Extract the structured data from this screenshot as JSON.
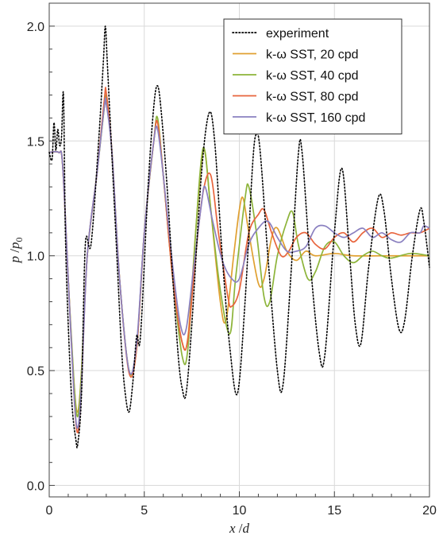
{
  "chart_data": {
    "type": "line",
    "title": "",
    "xlabel": "x /d",
    "ylabel": "p /p0",
    "xlabel_parts": {
      "main": "x",
      "sep": " /",
      "denom": "d"
    },
    "ylabel_parts": {
      "main": "p",
      "sep": " /",
      "denom": "p",
      "sub": "0"
    },
    "xlim": [
      0,
      20
    ],
    "ylim": [
      -0.05,
      2.1
    ],
    "xticks": [
      0,
      5,
      10,
      15,
      20
    ],
    "xtick_labels": [
      "0",
      "5",
      "10",
      "15",
      "20"
    ],
    "yticks": [
      0.0,
      0.5,
      1.0,
      1.5,
      2.0
    ],
    "ytick_labels": [
      "0.0",
      "0.5",
      "1.0",
      "1.5",
      "2.0"
    ],
    "grid": true,
    "legend_position": "top-right",
    "series": [
      {
        "name": "experiment",
        "color": "#000000",
        "dash": "dotted",
        "points": [
          [
            0,
            1.45
          ],
          [
            0.15,
            1.42
          ],
          [
            0.25,
            1.58
          ],
          [
            0.35,
            1.46
          ],
          [
            0.45,
            1.55
          ],
          [
            0.55,
            1.48
          ],
          [
            0.65,
            1.52
          ],
          [
            0.75,
            1.7
          ],
          [
            0.85,
            1.1
          ],
          [
            1.0,
            0.7
          ],
          [
            1.2,
            0.35
          ],
          [
            1.4,
            0.2
          ],
          [
            1.5,
            0.18
          ],
          [
            1.7,
            0.4
          ],
          [
            1.9,
            1.05
          ],
          [
            2.2,
            1.05
          ],
          [
            2.6,
            1.5
          ],
          [
            2.85,
            1.85
          ],
          [
            2.95,
            2.0
          ],
          [
            3.05,
            1.85
          ],
          [
            3.2,
            1.6
          ],
          [
            3.5,
            1.1
          ],
          [
            3.8,
            0.6
          ],
          [
            4.0,
            0.4
          ],
          [
            4.2,
            0.32
          ],
          [
            4.4,
            0.45
          ],
          [
            4.6,
            0.65
          ],
          [
            4.8,
            0.65
          ],
          [
            5.2,
            1.3
          ],
          [
            5.5,
            1.65
          ],
          [
            5.7,
            1.74
          ],
          [
            5.9,
            1.62
          ],
          [
            6.2,
            1.3
          ],
          [
            6.5,
            0.9
          ],
          [
            6.8,
            0.55
          ],
          [
            7.0,
            0.42
          ],
          [
            7.2,
            0.4
          ],
          [
            7.5,
            0.7
          ],
          [
            8.0,
            1.35
          ],
          [
            8.4,
            1.62
          ],
          [
            8.7,
            1.5
          ],
          [
            9.1,
            1.0
          ],
          [
            9.5,
            0.6
          ],
          [
            9.9,
            0.4
          ],
          [
            10.3,
            0.8
          ],
          [
            10.7,
            1.4
          ],
          [
            10.9,
            1.53
          ],
          [
            11.1,
            1.45
          ],
          [
            11.5,
            1.0
          ],
          [
            12.0,
            0.5
          ],
          [
            12.3,
            0.44
          ],
          [
            12.7,
            0.9
          ],
          [
            13.1,
            1.44
          ],
          [
            13.3,
            1.45
          ],
          [
            13.7,
            1.0
          ],
          [
            14.2,
            0.58
          ],
          [
            14.5,
            0.57
          ],
          [
            15.0,
            1.1
          ],
          [
            15.4,
            1.38
          ],
          [
            15.8,
            1.0
          ],
          [
            16.1,
            0.7
          ],
          [
            16.4,
            0.62
          ],
          [
            16.8,
            0.95
          ],
          [
            17.3,
            1.25
          ],
          [
            17.6,
            1.2
          ],
          [
            18.0,
            0.9
          ],
          [
            18.4,
            0.68
          ],
          [
            18.7,
            0.72
          ],
          [
            19.1,
            1.0
          ],
          [
            19.5,
            1.2
          ],
          [
            19.7,
            1.15
          ],
          [
            20.0,
            0.95
          ]
        ]
      },
      {
        "name": "k-ω SST, 20 cpd",
        "color": "#e0a030",
        "dash": "solid",
        "points": [
          [
            0,
            1.45
          ],
          [
            0.5,
            1.45
          ],
          [
            0.7,
            1.4
          ],
          [
            1.0,
            0.9
          ],
          [
            1.3,
            0.45
          ],
          [
            1.5,
            0.32
          ],
          [
            1.7,
            0.5
          ],
          [
            2.0,
            1.0
          ],
          [
            2.5,
            1.35
          ],
          [
            2.9,
            1.65
          ],
          [
            3.0,
            1.67
          ],
          [
            3.3,
            1.45
          ],
          [
            3.7,
            0.9
          ],
          [
            4.2,
            0.5
          ],
          [
            4.6,
            0.6
          ],
          [
            5.0,
            1.1
          ],
          [
            5.5,
            1.5
          ],
          [
            5.7,
            1.58
          ],
          [
            6.0,
            1.35
          ],
          [
            6.5,
            0.9
          ],
          [
            7.0,
            0.62
          ],
          [
            7.3,
            0.65
          ],
          [
            7.7,
            1.1
          ],
          [
            8.0,
            1.4
          ],
          [
            8.2,
            1.45
          ],
          [
            8.5,
            1.2
          ],
          [
            9.0,
            0.8
          ],
          [
            9.3,
            0.72
          ],
          [
            9.7,
            1.0
          ],
          [
            10.0,
            1.2
          ],
          [
            10.2,
            1.25
          ],
          [
            10.5,
            1.1
          ],
          [
            11.0,
            0.88
          ],
          [
            11.3,
            0.9
          ],
          [
            11.7,
            1.08
          ],
          [
            12.0,
            1.12
          ],
          [
            12.5,
            1.02
          ],
          [
            13.0,
            0.98
          ],
          [
            13.5,
            1.02
          ],
          [
            14.0,
            1.0
          ],
          [
            15.0,
            1.01
          ],
          [
            16.0,
            1.0
          ],
          [
            18.0,
            1.0
          ],
          [
            20.0,
            1.0
          ]
        ]
      },
      {
        "name": "k-ω SST, 40 cpd",
        "color": "#8db43a",
        "dash": "solid",
        "points": [
          [
            0,
            1.45
          ],
          [
            0.5,
            1.45
          ],
          [
            0.7,
            1.4
          ],
          [
            1.0,
            0.9
          ],
          [
            1.3,
            0.45
          ],
          [
            1.5,
            0.3
          ],
          [
            1.7,
            0.5
          ],
          [
            2.0,
            1.0
          ],
          [
            2.5,
            1.35
          ],
          [
            2.9,
            1.65
          ],
          [
            3.0,
            1.68
          ],
          [
            3.3,
            1.45
          ],
          [
            3.7,
            0.9
          ],
          [
            4.2,
            0.5
          ],
          [
            4.6,
            0.6
          ],
          [
            5.0,
            1.1
          ],
          [
            5.5,
            1.5
          ],
          [
            5.7,
            1.6
          ],
          [
            6.0,
            1.35
          ],
          [
            6.5,
            0.9
          ],
          [
            7.0,
            0.56
          ],
          [
            7.3,
            0.6
          ],
          [
            7.7,
            1.1
          ],
          [
            8.0,
            1.42
          ],
          [
            8.2,
            1.45
          ],
          [
            8.5,
            1.2
          ],
          [
            9.0,
            0.85
          ],
          [
            9.5,
            0.66
          ],
          [
            9.8,
            0.9
          ],
          [
            10.3,
            1.25
          ],
          [
            10.5,
            1.3
          ],
          [
            10.9,
            1.1
          ],
          [
            11.3,
            0.82
          ],
          [
            11.6,
            0.8
          ],
          [
            12.0,
            1.0
          ],
          [
            12.5,
            1.15
          ],
          [
            12.8,
            1.19
          ],
          [
            13.1,
            1.05
          ],
          [
            13.6,
            0.9
          ],
          [
            14.0,
            0.93
          ],
          [
            14.5,
            1.04
          ],
          [
            15.0,
            1.06
          ],
          [
            15.5,
            1.0
          ],
          [
            16.0,
            0.97
          ],
          [
            16.5,
            1.0
          ],
          [
            17.0,
            1.02
          ],
          [
            17.5,
            1.0
          ],
          [
            18.0,
            0.99
          ],
          [
            19.0,
            1.01
          ],
          [
            20.0,
            1.0
          ]
        ]
      },
      {
        "name": "k-ω SST, 80 cpd",
        "color": "#e8643c",
        "dash": "solid",
        "points": [
          [
            0,
            1.45
          ],
          [
            0.5,
            1.45
          ],
          [
            0.7,
            1.4
          ],
          [
            1.0,
            0.9
          ],
          [
            1.3,
            0.4
          ],
          [
            1.5,
            0.23
          ],
          [
            1.7,
            0.45
          ],
          [
            2.0,
            1.0
          ],
          [
            2.5,
            1.35
          ],
          [
            2.9,
            1.68
          ],
          [
            3.0,
            1.71
          ],
          [
            3.3,
            1.45
          ],
          [
            3.7,
            0.9
          ],
          [
            4.2,
            0.49
          ],
          [
            4.6,
            0.6
          ],
          [
            5.0,
            1.1
          ],
          [
            5.5,
            1.5
          ],
          [
            5.7,
            1.58
          ],
          [
            6.0,
            1.35
          ],
          [
            6.5,
            0.9
          ],
          [
            7.0,
            0.62
          ],
          [
            7.3,
            0.64
          ],
          [
            7.7,
            1.0
          ],
          [
            8.1,
            1.28
          ],
          [
            8.5,
            1.35
          ],
          [
            8.9,
            1.1
          ],
          [
            9.4,
            0.82
          ],
          [
            9.6,
            0.78
          ],
          [
            10.0,
            0.85
          ],
          [
            10.5,
            1.1
          ],
          [
            11.0,
            1.18
          ],
          [
            11.3,
            1.2
          ],
          [
            11.7,
            1.1
          ],
          [
            12.2,
            1.0
          ],
          [
            12.6,
            1.02
          ],
          [
            13.0,
            1.08
          ],
          [
            13.5,
            1.1
          ],
          [
            14.0,
            1.05
          ],
          [
            14.5,
            1.03
          ],
          [
            15.0,
            1.08
          ],
          [
            15.5,
            1.1
          ],
          [
            16.0,
            1.06
          ],
          [
            16.5,
            1.1
          ],
          [
            17.0,
            1.12
          ],
          [
            17.5,
            1.08
          ],
          [
            18.0,
            1.1
          ],
          [
            18.5,
            1.09
          ],
          [
            19.0,
            1.1
          ],
          [
            19.5,
            1.1
          ],
          [
            20.0,
            1.12
          ]
        ]
      },
      {
        "name": "k-ω SST, 160 cpd",
        "color": "#8a80c0",
        "dash": "solid",
        "points": [
          [
            0,
            1.45
          ],
          [
            0.5,
            1.45
          ],
          [
            0.7,
            1.4
          ],
          [
            1.0,
            0.9
          ],
          [
            1.3,
            0.4
          ],
          [
            1.5,
            0.25
          ],
          [
            1.7,
            0.45
          ],
          [
            2.0,
            1.0
          ],
          [
            2.5,
            1.35
          ],
          [
            2.9,
            1.65
          ],
          [
            3.0,
            1.66
          ],
          [
            3.3,
            1.45
          ],
          [
            3.7,
            0.9
          ],
          [
            4.2,
            0.5
          ],
          [
            4.6,
            0.62
          ],
          [
            5.0,
            1.1
          ],
          [
            5.5,
            1.5
          ],
          [
            5.7,
            1.55
          ],
          [
            6.0,
            1.35
          ],
          [
            6.5,
            0.95
          ],
          [
            6.9,
            0.7
          ],
          [
            7.2,
            0.68
          ],
          [
            7.6,
            0.95
          ],
          [
            8.0,
            1.22
          ],
          [
            8.2,
            1.3
          ],
          [
            8.6,
            1.15
          ],
          [
            9.1,
            0.98
          ],
          [
            9.6,
            0.9
          ],
          [
            10.0,
            0.9
          ],
          [
            10.5,
            1.05
          ],
          [
            11.0,
            1.12
          ],
          [
            11.5,
            1.15
          ],
          [
            12.0,
            1.08
          ],
          [
            12.5,
            1.02
          ],
          [
            13.0,
            1.02
          ],
          [
            13.5,
            1.04
          ],
          [
            14.0,
            1.12
          ],
          [
            14.5,
            1.13
          ],
          [
            15.0,
            1.1
          ],
          [
            15.5,
            1.08
          ],
          [
            16.0,
            1.1
          ],
          [
            16.5,
            1.12
          ],
          [
            17.0,
            1.08
          ],
          [
            17.5,
            1.1
          ],
          [
            18.0,
            1.07
          ],
          [
            18.5,
            1.06
          ],
          [
            19.0,
            1.1
          ],
          [
            19.5,
            1.1
          ],
          [
            19.7,
            1.13
          ],
          [
            20.0,
            1.12
          ]
        ]
      }
    ]
  }
}
